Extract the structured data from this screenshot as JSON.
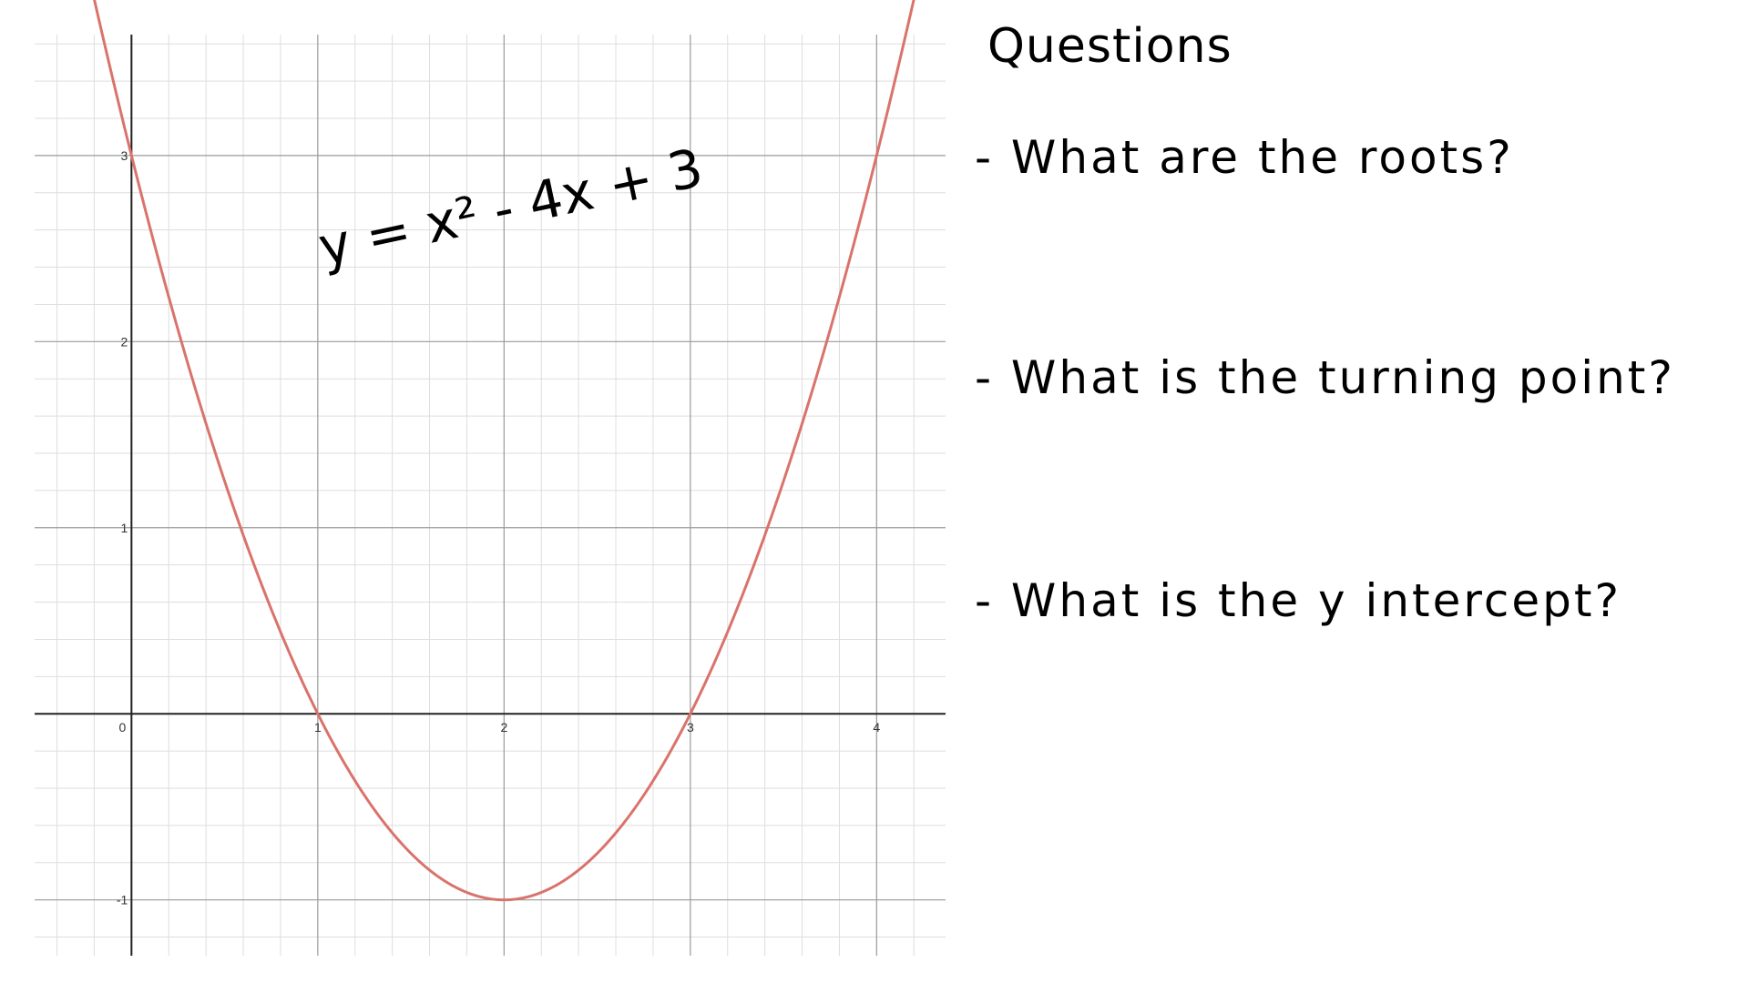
{
  "chart_data": {
    "type": "line",
    "title": "y = x² - 4x + 3",
    "xlabel": "",
    "ylabel": "",
    "xlim": [
      -0.52,
      4.37
    ],
    "ylim": [
      -1.3,
      3.65
    ],
    "grid": true,
    "x_ticks": [
      "0",
      "1",
      "2",
      "3",
      "4"
    ],
    "y_ticks": [
      "-1",
      "1",
      "2",
      "3"
    ],
    "series": [
      {
        "function": "x^2 - 4x + 3",
        "color": "#d9736b",
        "x": [
          -0.35,
          -0.2,
          0,
          0.25,
          0.5,
          0.75,
          1,
          1.25,
          1.5,
          1.75,
          2,
          2.25,
          2.5,
          2.75,
          3,
          3.25,
          3.5,
          3.75,
          4,
          4.2,
          4.17
        ],
        "y": [
          4.52,
          3.84,
          3,
          2.06,
          1.25,
          0.56,
          0,
          -0.44,
          -0.75,
          -0.94,
          -1,
          -0.94,
          -0.75,
          -0.44,
          0,
          0.56,
          1.25,
          2.06,
          3,
          3.84,
          3.72
        ]
      }
    ]
  },
  "handwriting": {
    "equation": "y = x² - 4x + 3"
  },
  "questions": {
    "title": "Questions",
    "items": [
      "- What are the roots?",
      "- What is the turning point?",
      "- What is the y intercept?"
    ]
  }
}
